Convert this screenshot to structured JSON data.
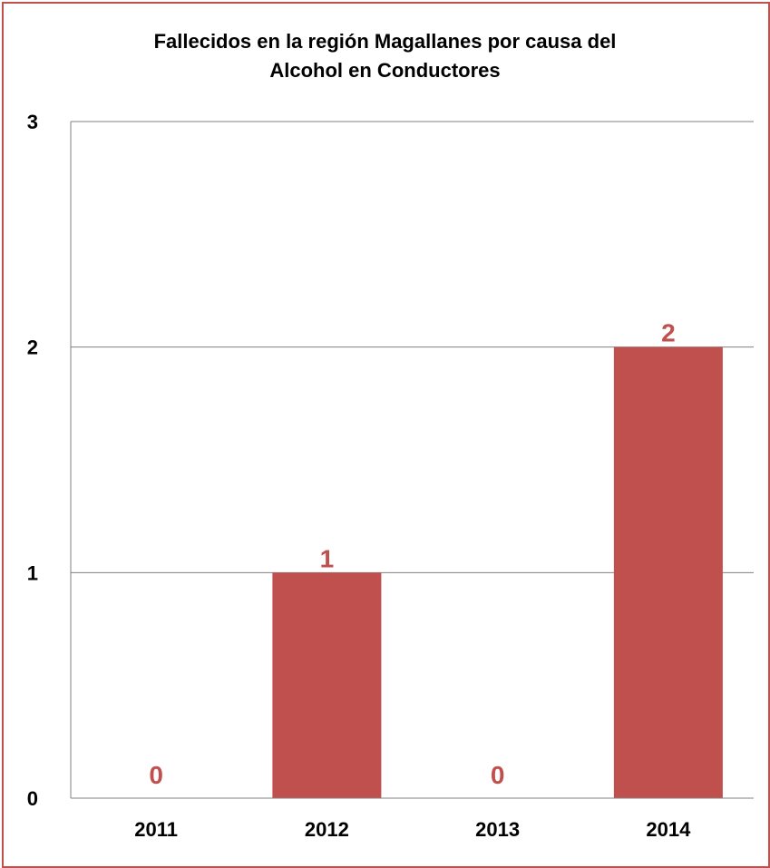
{
  "chart_data": {
    "type": "bar",
    "title_lines": [
      "Fallecidos en la región Magallanes por causa del",
      "Alcohol en Conductores"
    ],
    "categories": [
      "2011",
      "2012",
      "2013",
      "2014"
    ],
    "values": [
      0,
      1,
      0,
      2
    ],
    "data_labels": [
      "0",
      "1",
      "0",
      "2"
    ],
    "ylim": [
      0,
      3
    ],
    "yticks": [
      "0",
      "1",
      "2",
      "3"
    ],
    "grid": true,
    "legend": "none",
    "colors": {
      "bar": "#c0504d",
      "label": "#c0504d",
      "border": "#c0504d",
      "gridline": "#808080"
    }
  }
}
